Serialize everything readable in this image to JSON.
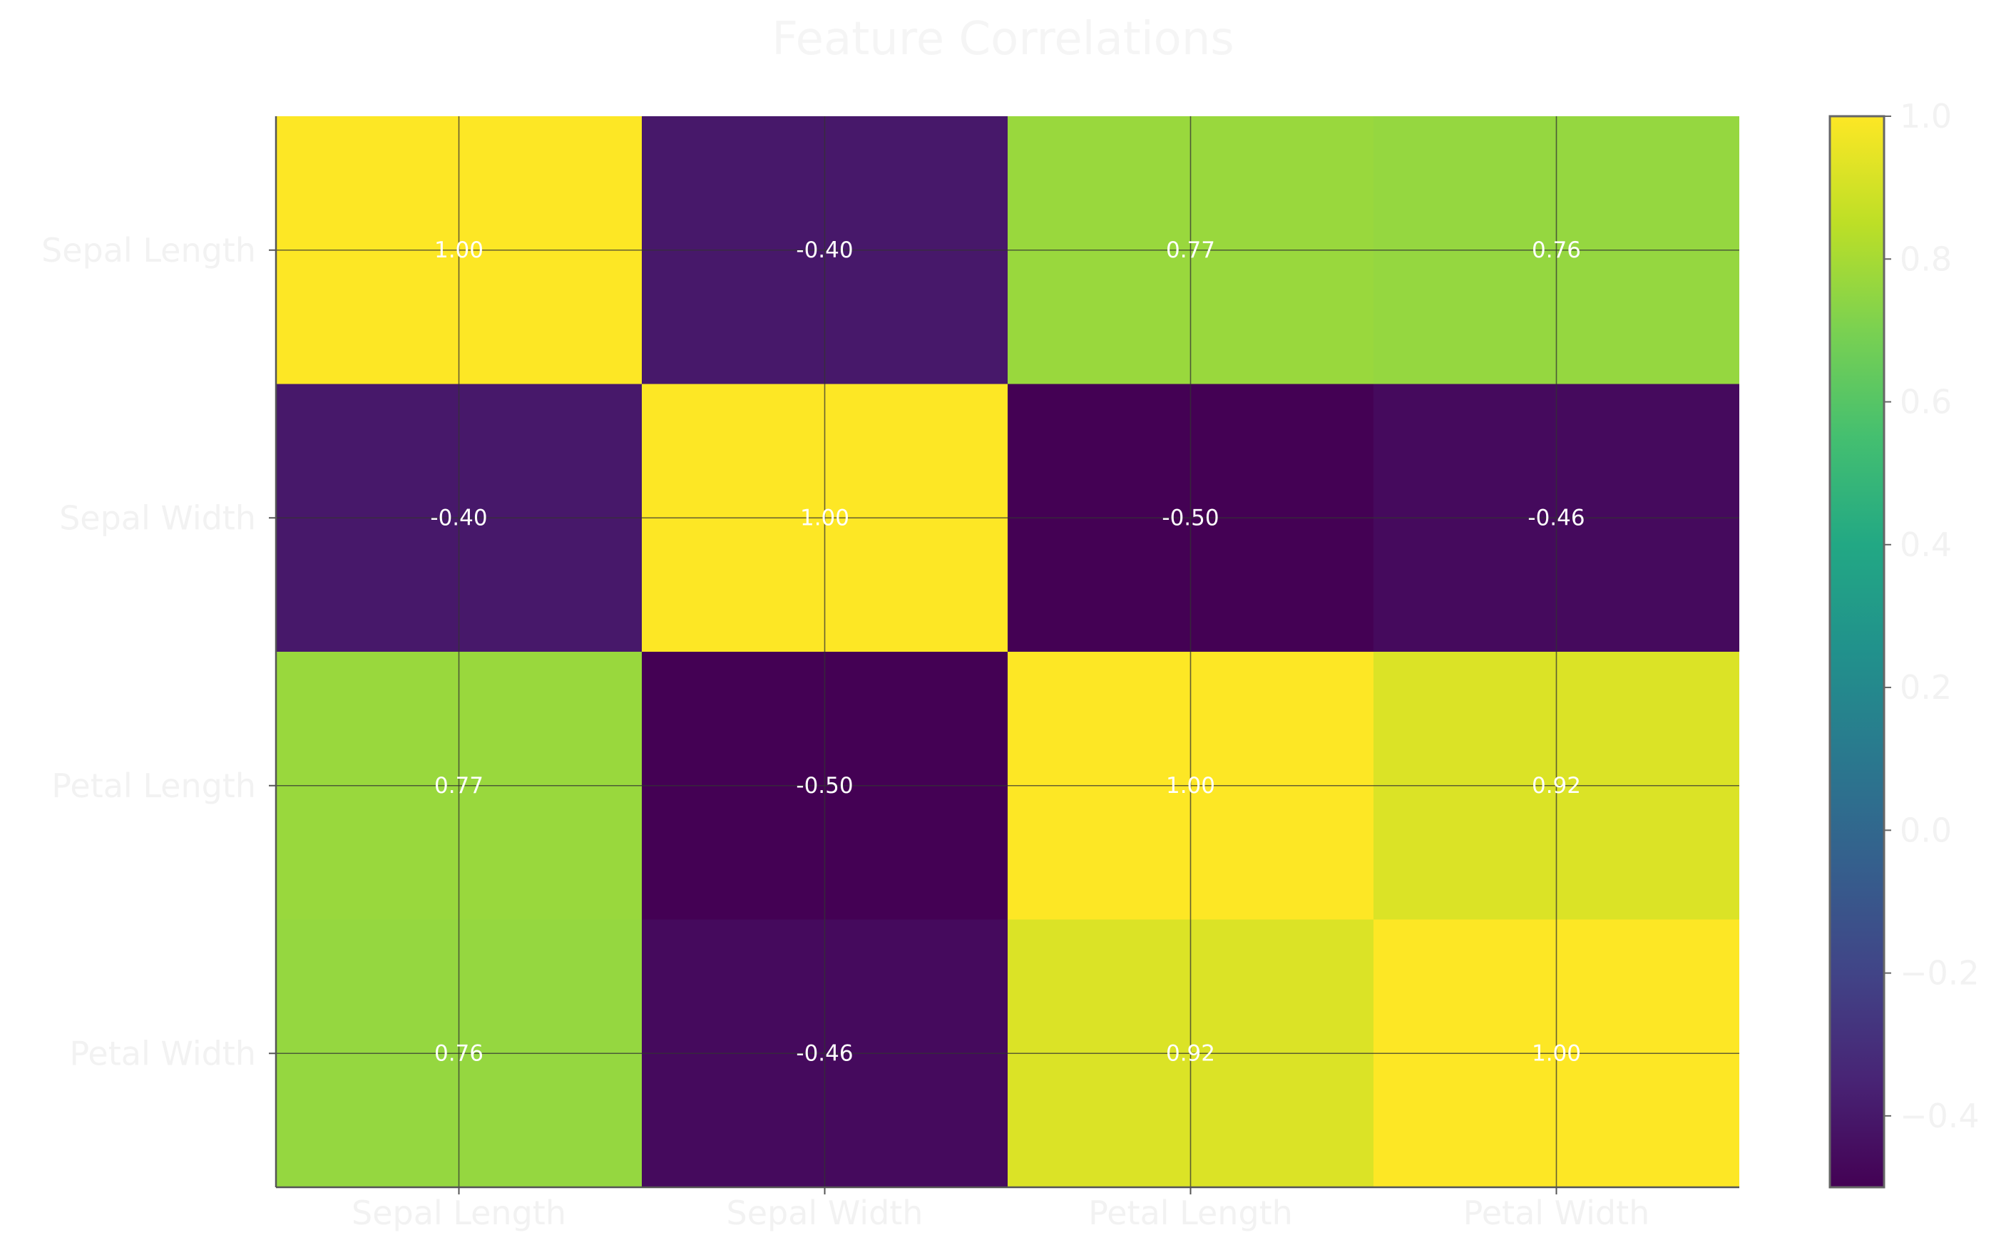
{
  "chart_data": {
    "type": "heatmap",
    "title": "Feature Correlations",
    "x_categories": [
      "Sepal Length",
      "Sepal Width",
      "Petal Length",
      "Petal Width"
    ],
    "y_categories": [
      "Sepal Length",
      "Sepal Width",
      "Petal Length",
      "Petal Width"
    ],
    "values": [
      [
        1.0,
        -0.4,
        0.77,
        0.76
      ],
      [
        -0.4,
        1.0,
        -0.5,
        -0.46
      ],
      [
        0.77,
        -0.5,
        1.0,
        0.92
      ],
      [
        0.76,
        -0.46,
        0.92,
        1.0
      ]
    ],
    "value_labels": [
      [
        "1.00",
        "-0.40",
        "0.77",
        "0.76"
      ],
      [
        "-0.40",
        "1.00",
        "-0.50",
        "-0.46"
      ],
      [
        "0.77",
        "-0.50",
        "1.00",
        "0.92"
      ],
      [
        "0.76",
        "-0.46",
        "0.92",
        "1.00"
      ]
    ],
    "colormap": "viridis",
    "color_range": [
      -0.5,
      1.0
    ],
    "colorbar_ticks": [
      -0.4,
      -0.2,
      0.0,
      0.2,
      0.4,
      0.6,
      0.8,
      1.0
    ],
    "colorbar_tick_labels": [
      "−0.4",
      "−0.2",
      "0.0",
      "0.2",
      "0.4",
      "0.6",
      "0.8",
      "1.0"
    ],
    "grid": true
  }
}
